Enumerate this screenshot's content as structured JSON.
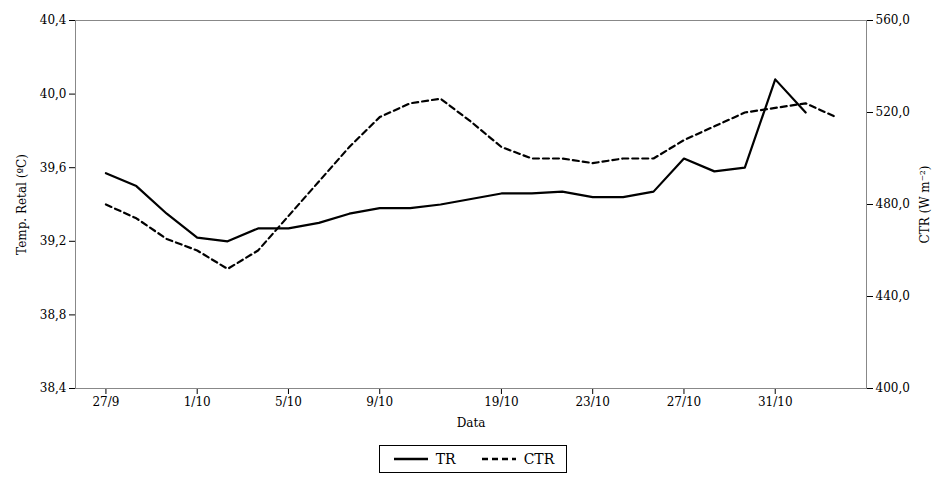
{
  "chart_data": {
    "type": "line",
    "xlabel": "Data",
    "ylabel": "Temp. Retal (ºC)",
    "y2label": "CTR (W m⁻²)",
    "xlim": [
      -1,
      25
    ],
    "xticks": [
      {
        "value": 0,
        "label": "27/9"
      },
      {
        "value": 3,
        "label": "1/10"
      },
      {
        "value": 6,
        "label": "5/10"
      },
      {
        "value": 9,
        "label": "9/10"
      },
      {
        "value": 13,
        "label": "19/10"
      },
      {
        "value": 16,
        "label": "23/10"
      },
      {
        "value": 19,
        "label": "27/10"
      },
      {
        "value": 22,
        "label": "31/10"
      }
    ],
    "ylim": [
      38.4,
      40.4
    ],
    "yticks": [
      {
        "value": 38.4,
        "label": "38,4"
      },
      {
        "value": 38.8,
        "label": "38,8"
      },
      {
        "value": 39.2,
        "label": "39,2"
      },
      {
        "value": 39.6,
        "label": "39,6"
      },
      {
        "value": 40.0,
        "label": "40,0"
      },
      {
        "value": 40.4,
        "label": "40,4"
      }
    ],
    "y2lim": [
      400.0,
      560.0
    ],
    "y2ticks": [
      {
        "value": 400.0,
        "label": "400,0"
      },
      {
        "value": 440.0,
        "label": "440,0"
      },
      {
        "value": 480.0,
        "label": "480,0"
      },
      {
        "value": 520.0,
        "label": "520,0"
      },
      {
        "value": 560.0,
        "label": "560,0"
      }
    ],
    "grid": false,
    "legend": "bottom",
    "series": [
      {
        "name": "TR",
        "color": "#000000",
        "line_style": "solid",
        "x": [
          0,
          1,
          2,
          3,
          4,
          5,
          6,
          7,
          8,
          9,
          10,
          11,
          12,
          13,
          14,
          15,
          16,
          17,
          18,
          19,
          20,
          21,
          22,
          23
        ],
        "values": [
          39.57,
          39.5,
          39.35,
          39.22,
          39.2,
          39.27,
          39.27,
          39.3,
          39.35,
          39.38,
          39.38,
          39.4,
          39.43,
          39.46,
          39.46,
          39.47,
          39.44,
          39.44,
          39.47,
          39.65,
          39.58,
          39.6,
          40.08,
          39.9
        ]
      },
      {
        "name": "CTR",
        "color": "#000000",
        "line_style": "dashed",
        "axis": "y2",
        "x": [
          0,
          1,
          2,
          3,
          4,
          5,
          6,
          7,
          8,
          9,
          10,
          11,
          12,
          13,
          14,
          15,
          16,
          17,
          18,
          19,
          20,
          21,
          22,
          23,
          24
        ],
        "values": [
          480,
          474,
          465,
          460,
          452,
          460,
          475,
          490,
          505,
          518,
          524,
          526,
          516,
          505,
          500,
          500,
          498,
          500,
          500,
          508,
          514,
          520,
          522,
          524,
          518
        ]
      }
    ]
  }
}
